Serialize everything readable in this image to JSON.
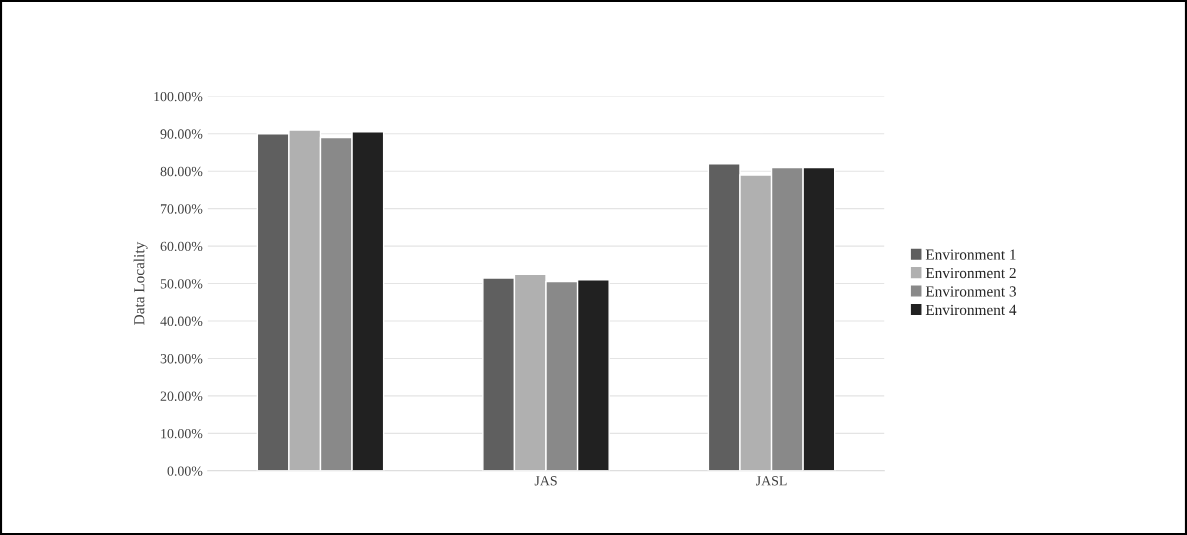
{
  "chart_data": {
    "type": "bar",
    "ylabel": "Data Locality",
    "categories": [
      null,
      "JAS",
      "JASL"
    ],
    "series": [
      {
        "name": "Environment 1",
        "color": "#5f5f5f",
        "values": [
          90,
          51.5,
          82
        ]
      },
      {
        "name": "Environment 2",
        "color": "#b0b0b0",
        "values": [
          91,
          52.5,
          79
        ]
      },
      {
        "name": "Environment 3",
        "color": "#898989",
        "values": [
          89,
          50.5,
          81
        ]
      },
      {
        "name": "Environment 4",
        "color": "#212121",
        "values": [
          90.5,
          51,
          81
        ]
      }
    ],
    "ylim": [
      0,
      100
    ],
    "yticks": [
      {
        "value": 0,
        "label": "0.00%"
      },
      {
        "value": 10,
        "label": "10.00%"
      },
      {
        "value": 20,
        "label": "20.00%"
      },
      {
        "value": 30,
        "label": "30.00%"
      },
      {
        "value": 40,
        "label": "40.00%"
      },
      {
        "value": 50,
        "label": "50.00%"
      },
      {
        "value": 60,
        "label": "60.00%"
      },
      {
        "value": 70,
        "label": "70.00%"
      },
      {
        "value": 80,
        "label": "80.00%"
      },
      {
        "value": 90,
        "label": "90.00%"
      },
      {
        "value": 100,
        "label": "100.00%"
      }
    ],
    "grid": "y",
    "legend": "right"
  }
}
